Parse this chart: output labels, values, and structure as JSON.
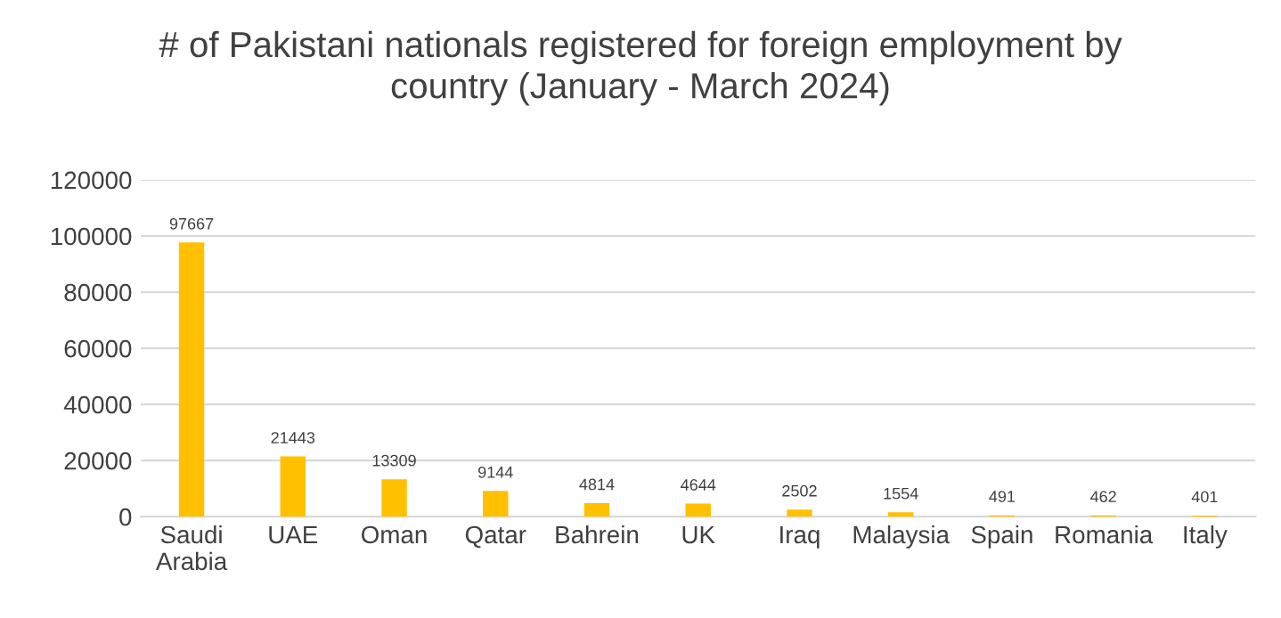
{
  "chart_data": {
    "type": "bar",
    "title": "# of Pakistani nationals registered for foreign employment by\ncountry (January - March 2024)",
    "categories": [
      "Saudi\nArabia",
      "UAE",
      "Oman",
      "Qatar",
      "Bahrein",
      "UK",
      "Iraq",
      "Malaysia",
      "Spain",
      "Romania",
      "Italy"
    ],
    "values": [
      97667,
      21443,
      13309,
      9144,
      4814,
      4644,
      2502,
      1554,
      491,
      462,
      401
    ],
    "color": "#ffc000",
    "ylim": [
      0,
      120000
    ],
    "yticks": [
      0,
      20000,
      40000,
      60000,
      80000,
      100000,
      120000
    ],
    "grid": "y",
    "data_labels": true,
    "legend": false
  }
}
